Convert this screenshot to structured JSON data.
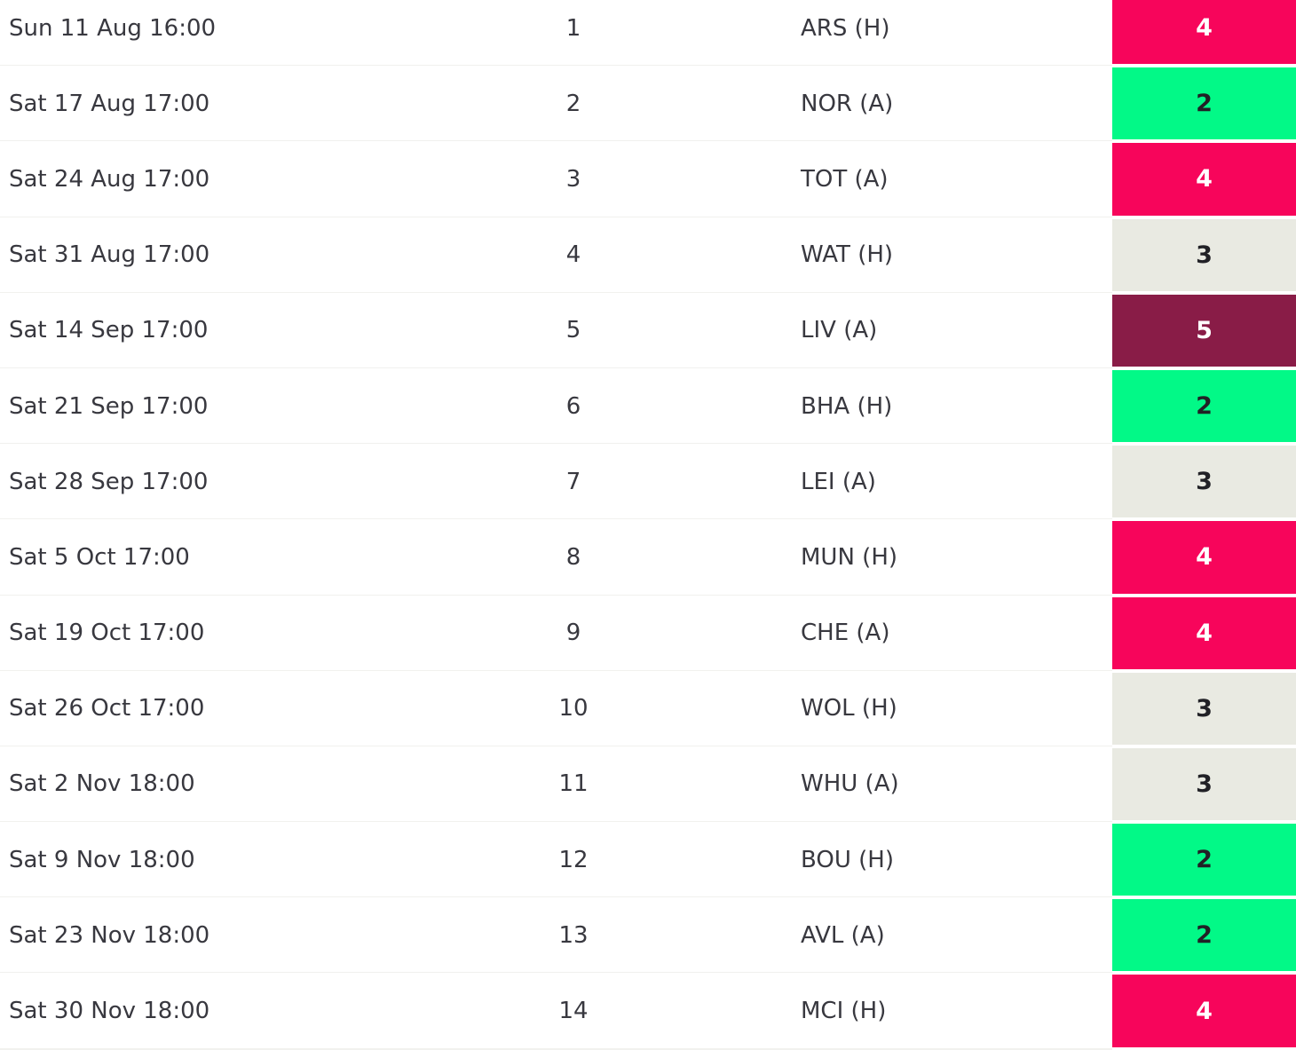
{
  "fixtures": {
    "columns": [
      "date",
      "gameweek",
      "opponent",
      "difficulty"
    ],
    "rows": [
      {
        "date": "Sun 11 Aug 16:00",
        "gameweek": "1",
        "opponent": "ARS (H)",
        "difficulty": "4"
      },
      {
        "date": "Sat 17 Aug 17:00",
        "gameweek": "2",
        "opponent": "NOR (A)",
        "difficulty": "2"
      },
      {
        "date": "Sat 24 Aug 17:00",
        "gameweek": "3",
        "opponent": "TOT (A)",
        "difficulty": "4"
      },
      {
        "date": "Sat 31 Aug 17:00",
        "gameweek": "4",
        "opponent": "WAT (H)",
        "difficulty": "3"
      },
      {
        "date": "Sat 14 Sep 17:00",
        "gameweek": "5",
        "opponent": "LIV (A)",
        "difficulty": "5"
      },
      {
        "date": "Sat 21 Sep 17:00",
        "gameweek": "6",
        "opponent": "BHA (H)",
        "difficulty": "2"
      },
      {
        "date": "Sat 28 Sep 17:00",
        "gameweek": "7",
        "opponent": "LEI (A)",
        "difficulty": "3"
      },
      {
        "date": "Sat 5 Oct 17:00",
        "gameweek": "8",
        "opponent": "MUN (H)",
        "difficulty": "4"
      },
      {
        "date": "Sat 19 Oct 17:00",
        "gameweek": "9",
        "opponent": "CHE (A)",
        "difficulty": "4"
      },
      {
        "date": "Sat 26 Oct 17:00",
        "gameweek": "10",
        "opponent": "WOL (H)",
        "difficulty": "3"
      },
      {
        "date": "Sat 2 Nov 18:00",
        "gameweek": "11",
        "opponent": "WHU (A)",
        "difficulty": "3"
      },
      {
        "date": "Sat 9 Nov 18:00",
        "gameweek": "12",
        "opponent": "BOU (H)",
        "difficulty": "2"
      },
      {
        "date": "Sat 23 Nov 18:00",
        "gameweek": "13",
        "opponent": "AVL (A)",
        "difficulty": "2"
      },
      {
        "date": "Sat 30 Nov 18:00",
        "gameweek": "14",
        "opponent": "MCI (H)",
        "difficulty": "4"
      }
    ]
  },
  "difficulty_colors": {
    "2": {
      "bg": "#02f987",
      "text": "#212126"
    },
    "3": {
      "bg": "#e9eae2",
      "text": "#212126"
    },
    "4": {
      "bg": "#f7055b",
      "text": "#ffffff"
    },
    "5": {
      "bg": "#891c47",
      "text": "#ffffff"
    }
  }
}
